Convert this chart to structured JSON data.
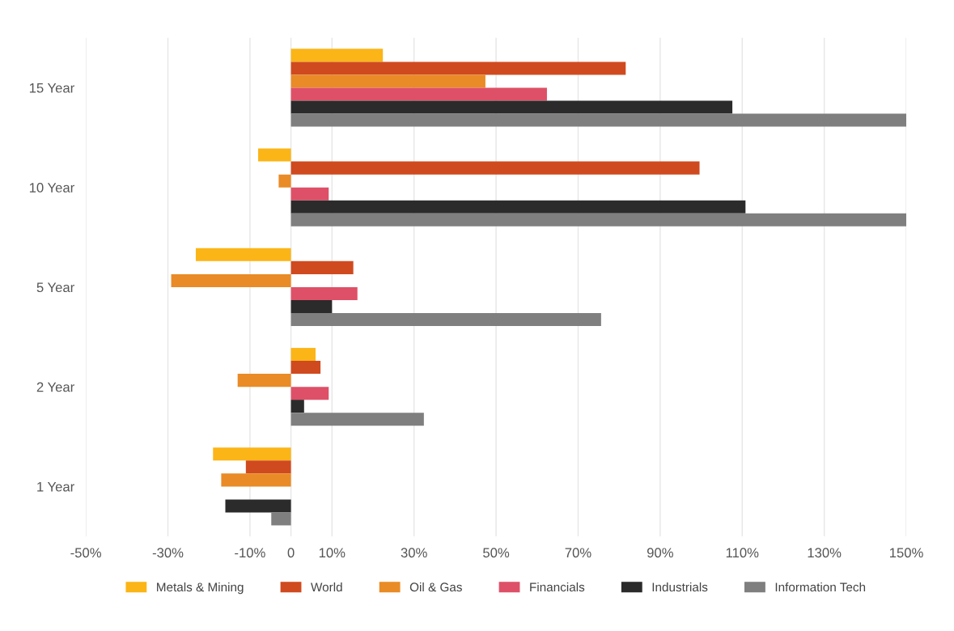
{
  "chart_data": {
    "type": "bar",
    "orientation": "horizontal",
    "categories": [
      "15 Year",
      "10 Year",
      "5 Year",
      "2 Year",
      "1 Year"
    ],
    "series": [
      {
        "name": "Metals & Mining",
        "color": "#fbb516",
        "values": [
          22.4,
          -8,
          -23.2,
          6,
          -19
        ]
      },
      {
        "name": "World",
        "color": "#d04a1f",
        "values": [
          81.6,
          99.6,
          15.2,
          7.2,
          -11
        ]
      },
      {
        "name": "Oil & Gas",
        "color": "#e98b26",
        "values": [
          47.4,
          -3,
          -29.2,
          -13,
          -17
        ]
      },
      {
        "name": "Financials",
        "color": "#de5067",
        "values": [
          62.4,
          9.2,
          16.2,
          9.2,
          null
        ]
      },
      {
        "name": "Industrials",
        "color": "#2b2b2b",
        "values": [
          107.6,
          110.8,
          10,
          3.2,
          -16
        ]
      },
      {
        "name": "Information Tech",
        "color": "#7f7f7f",
        "values": [
          150,
          150,
          75.6,
          32.4,
          -4.8
        ]
      }
    ],
    "xlim": [
      -50,
      150
    ],
    "xticks": [
      {
        "value": -50,
        "label": "-50%"
      },
      {
        "value": -30,
        "label": "-30%"
      },
      {
        "value": -10,
        "label": "-10%"
      },
      0,
      {
        "value": 10,
        "label": "10%"
      },
      {
        "value": 30,
        "label": "30%"
      },
      {
        "value": 50,
        "label": "50%"
      },
      {
        "value": 70,
        "label": "70%"
      },
      {
        "value": 90,
        "label": "90%"
      },
      {
        "value": 110,
        "label": "110%"
      },
      {
        "value": 130,
        "label": "130%"
      },
      {
        "value": 150,
        "label": "150%"
      }
    ],
    "grid": "x",
    "legend": "bottom"
  }
}
